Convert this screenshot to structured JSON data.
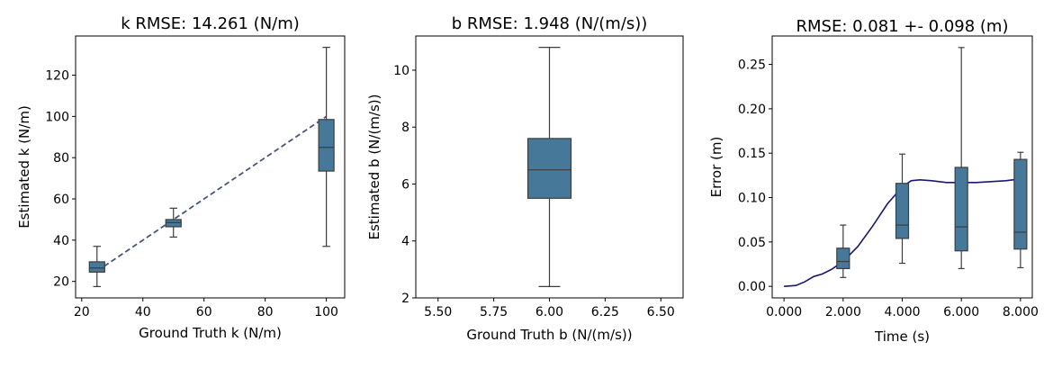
{
  "chart_data": [
    {
      "type": "box",
      "title": "k RMSE: 14.261 (N/m)",
      "xlabel": "Ground Truth k (N/m)",
      "ylabel": "Estimated k (N/m)",
      "xlim": [
        18,
        106
      ],
      "ylim": [
        12,
        139
      ],
      "xticks": [
        20,
        40,
        60,
        80,
        100
      ],
      "xtick_labels": [
        "20",
        "40",
        "60",
        "80",
        "100"
      ],
      "yticks": [
        20,
        40,
        60,
        80,
        100,
        120
      ],
      "ytick_labels": [
        "20",
        "40",
        "60",
        "80",
        "100",
        "120"
      ],
      "box_color": "#457899",
      "boxes": [
        {
          "x": 25,
          "whisker_low": 17.5,
          "q1": 24.5,
          "median": 26.5,
          "q3": 29.5,
          "whisker_high": 37
        },
        {
          "x": 50,
          "whisker_low": 41.5,
          "q1": 46.5,
          "median": 48.5,
          "q3": 50,
          "whisker_high": 55.5
        },
        {
          "x": 100,
          "whisker_low": 37,
          "q1": 73.5,
          "median": 85,
          "q3": 98.5,
          "whisker_high": 133.5
        }
      ],
      "reference_line": {
        "color": "#46557a",
        "style": "dashed",
        "x": [
          25,
          100
        ],
        "y": [
          25,
          100
        ]
      }
    },
    {
      "type": "box",
      "title": "b RMSE: 1.948 (N/(m/s))",
      "xlabel": "Ground Truth b (N/(m/s))",
      "ylabel": "Estimated b (N/(m/s))",
      "xlim": [
        5.4,
        6.6
      ],
      "ylim": [
        2.0,
        11.2
      ],
      "xticks": [
        5.5,
        5.75,
        6.0,
        6.25,
        6.5
      ],
      "xtick_labels": [
        "5.50",
        "5.75",
        "6.00",
        "6.25",
        "6.50"
      ],
      "yticks": [
        2,
        4,
        6,
        8,
        10
      ],
      "ytick_labels": [
        "2",
        "4",
        "6",
        "8",
        "10"
      ],
      "box_color": "#457899",
      "boxes": [
        {
          "x": 6.0,
          "whisker_low": 2.4,
          "q1": 5.5,
          "median": 6.5,
          "q3": 7.6,
          "whisker_high": 10.8
        }
      ]
    },
    {
      "type": "box",
      "title": "RMSE: 0.081 +- 0.098 (m)",
      "xlabel": "Time (s)",
      "ylabel": "Error (m)",
      "xlim": [
        -0.4,
        8.4
      ],
      "ylim": [
        -0.013,
        0.282
      ],
      "xticks": [
        0,
        2,
        4,
        6,
        8
      ],
      "xtick_labels": [
        "0.000",
        "2.000",
        "4.000",
        "6.000",
        "8.000"
      ],
      "yticks": [
        0.0,
        0.05,
        0.1,
        0.15,
        0.2,
        0.25
      ],
      "ytick_labels": [
        "0.00",
        "0.05",
        "0.10",
        "0.15",
        "0.20",
        "0.25"
      ],
      "box_color": "#457899",
      "boxes": [
        {
          "x": 2,
          "whisker_low": 0.01,
          "q1": 0.02,
          "median": 0.028,
          "q3": 0.043,
          "whisker_high": 0.069
        },
        {
          "x": 4,
          "whisker_low": 0.026,
          "q1": 0.054,
          "median": 0.069,
          "q3": 0.116,
          "whisker_high": 0.149
        },
        {
          "x": 6,
          "whisker_low": 0.02,
          "q1": 0.04,
          "median": 0.067,
          "q3": 0.134,
          "whisker_high": 0.269
        },
        {
          "x": 8,
          "whisker_low": 0.021,
          "q1": 0.042,
          "median": 0.061,
          "q3": 0.143,
          "whisker_high": 0.151
        }
      ],
      "line": {
        "color": "#191970",
        "x": [
          0,
          0.4,
          0.7,
          1.0,
          1.3,
          1.6,
          2.0,
          2.5,
          3.0,
          3.5,
          4.0,
          4.3,
          4.6,
          5.0,
          5.5,
          6.0,
          6.5,
          7.0,
          7.5,
          8.0
        ],
        "y": [
          0.0,
          0.001,
          0.005,
          0.011,
          0.014,
          0.019,
          0.028,
          0.045,
          0.068,
          0.093,
          0.112,
          0.119,
          0.12,
          0.119,
          0.117,
          0.117,
          0.117,
          0.118,
          0.119,
          0.121
        ]
      }
    }
  ]
}
